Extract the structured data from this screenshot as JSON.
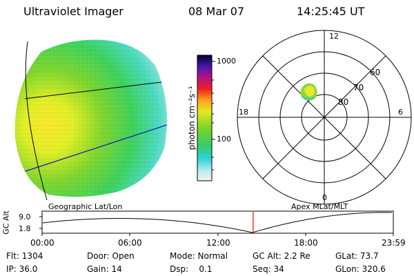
{
  "header": {
    "instrument": "Ultraviolet Imager",
    "date": "08 Mar 07",
    "time": "14:25:45 UT"
  },
  "colorbar": {
    "unit_label": "photon cm⁻²s⁻¹",
    "ticks": [
      "1000",
      "100"
    ]
  },
  "polar_plot": {
    "mlt_labels": {
      "top": "12",
      "bottom": "0",
      "left": "18",
      "right": "6"
    },
    "mlat_labels": [
      "60",
      "70",
      "80"
    ]
  },
  "map_labels": {
    "left": "Geographic Lat/Lon",
    "right": "Apex MLat/MLT"
  },
  "altitude_plot": {
    "ylabel": "GC Alt",
    "yticks": [
      "9.0",
      "1.8"
    ],
    "xticks": [
      "00:00",
      "06:00",
      "12:00",
      "18:00",
      "23:59"
    ],
    "current_time_fraction": 0.601,
    "marker_color": "#ff0000"
  },
  "footer": {
    "row1": {
      "flt": "Flt: 1304",
      "door": "Door: Open",
      "mode": "Mode: Normal",
      "gc_alt": "GC Alt: 2.2 Re",
      "glat": "GLat: 73.7"
    },
    "row2": {
      "ip": "IP: 36.0",
      "gain": "Gain: 14",
      "dsp": "Dsp:    0.1",
      "seq": "Seq: 34",
      "glon": "GLon: 320.6"
    }
  }
}
